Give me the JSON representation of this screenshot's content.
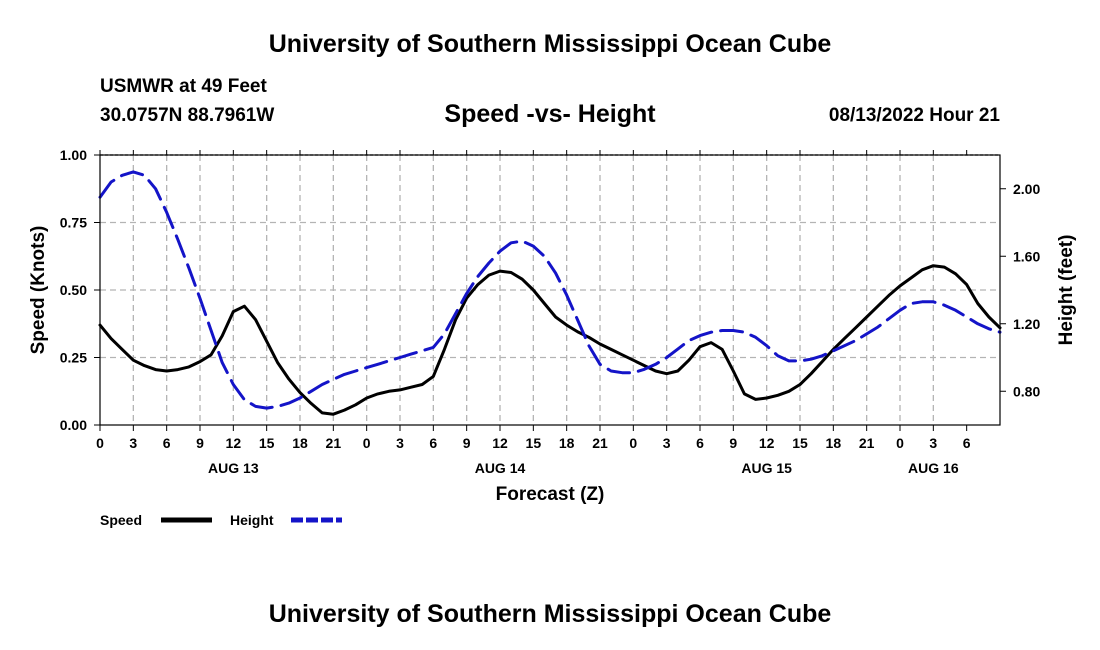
{
  "header": {
    "main_title": "University of Southern Mississippi Ocean Cube",
    "station": "USMWR at 49 Feet",
    "coordinates": "30.0757N  88.7961W",
    "run_time": "08/13/2022 Hour 21",
    "footer_title": "University of Southern Mississippi Ocean Cube"
  },
  "colors": {
    "speed": "#000000",
    "height": "#1414c8",
    "grid": "#b4b4b4"
  },
  "chart_data": {
    "type": "line",
    "title": "Speed -vs- Height",
    "xlabel": "Forecast (Z)",
    "ylabel": "Speed (Knots)",
    "y2label": "Height (feet)",
    "grid": true,
    "legend_position": "bottom-left",
    "xlim": [
      0,
      81
    ],
    "ylim": [
      0,
      1
    ],
    "y2lim": [
      0.6,
      2.2
    ],
    "x_tick_labels": [
      "0",
      "3",
      "6",
      "9",
      "12",
      "15",
      "18",
      "21",
      "0",
      "3",
      "6",
      "9",
      "12",
      "15",
      "18",
      "21",
      "0",
      "3",
      "6",
      "9",
      "12",
      "15",
      "18",
      "21",
      "0",
      "3",
      "6"
    ],
    "date_labels": [
      {
        "x": 12,
        "label": "AUG 13"
      },
      {
        "x": 36,
        "label": "AUG 14"
      },
      {
        "x": 60,
        "label": "AUG 15"
      },
      {
        "x": 75,
        "label": "AUG 16"
      }
    ],
    "y_ticks": [
      0,
      0.25,
      0.5,
      0.75,
      1.0
    ],
    "y_tick_labels": [
      "0.00",
      "0.25",
      "0.50",
      "0.75",
      "1.00"
    ],
    "y2_ticks": [
      0.8,
      1.2,
      1.6,
      2.0
    ],
    "y2_tick_labels": [
      "0.80",
      "1.20",
      "1.60",
      "2.00"
    ],
    "series": [
      {
        "name": "Speed",
        "axis": "left",
        "style": "solid",
        "x": [
          0,
          1,
          2,
          3,
          4,
          5,
          6,
          7,
          8,
          9,
          10,
          11,
          12,
          13,
          14,
          15,
          16,
          17,
          18,
          19,
          20,
          21,
          22,
          23,
          24,
          25,
          26,
          27,
          28,
          29,
          30,
          31,
          32,
          33,
          34,
          35,
          36,
          37,
          38,
          39,
          40,
          41,
          42,
          43,
          44,
          45,
          46,
          47,
          48,
          49,
          50,
          51,
          52,
          53,
          54,
          55,
          56,
          57,
          58,
          59,
          60,
          61,
          62,
          63,
          64,
          65,
          66,
          67,
          68,
          69,
          70,
          71,
          72,
          73,
          74,
          75,
          76,
          77,
          78,
          79,
          80,
          81
        ],
        "values": [
          0.37,
          0.32,
          0.28,
          0.24,
          0.22,
          0.205,
          0.2,
          0.205,
          0.215,
          0.235,
          0.26,
          0.33,
          0.42,
          0.44,
          0.39,
          0.31,
          0.23,
          0.17,
          0.12,
          0.08,
          0.045,
          0.04,
          0.055,
          0.075,
          0.1,
          0.115,
          0.125,
          0.13,
          0.14,
          0.15,
          0.18,
          0.28,
          0.39,
          0.47,
          0.52,
          0.555,
          0.57,
          0.565,
          0.54,
          0.5,
          0.45,
          0.4,
          0.37,
          0.345,
          0.325,
          0.3,
          0.28,
          0.26,
          0.24,
          0.22,
          0.2,
          0.19,
          0.2,
          0.24,
          0.29,
          0.305,
          0.28,
          0.2,
          0.115,
          0.095,
          0.1,
          0.11,
          0.125,
          0.15,
          0.19,
          0.235,
          0.28,
          0.32,
          0.36,
          0.4,
          0.44,
          0.48,
          0.515,
          0.545,
          0.575,
          0.59,
          0.585,
          0.56,
          0.52,
          0.45,
          0.4,
          0.36
        ]
      },
      {
        "name": "Height",
        "axis": "right",
        "style": "dashed",
        "x": [
          0,
          1,
          2,
          3,
          4,
          5,
          6,
          7,
          8,
          9,
          10,
          11,
          12,
          13,
          14,
          15,
          16,
          17,
          18,
          19,
          20,
          21,
          22,
          23,
          24,
          25,
          26,
          27,
          28,
          29,
          30,
          31,
          32,
          33,
          34,
          35,
          36,
          37,
          38,
          39,
          40,
          41,
          42,
          43,
          44,
          45,
          46,
          47,
          48,
          49,
          50,
          51,
          52,
          53,
          54,
          55,
          56,
          57,
          58,
          59,
          60,
          61,
          62,
          63,
          64,
          65,
          66,
          67,
          68,
          69,
          70,
          71,
          72,
          73,
          74,
          75,
          76,
          77,
          78,
          79,
          80,
          81
        ],
        "values": [
          1.95,
          2.04,
          2.08,
          2.1,
          2.08,
          2.0,
          1.86,
          1.7,
          1.53,
          1.35,
          1.16,
          0.97,
          0.84,
          0.75,
          0.71,
          0.7,
          0.71,
          0.73,
          0.76,
          0.8,
          0.84,
          0.87,
          0.9,
          0.92,
          0.94,
          0.96,
          0.98,
          1.0,
          1.02,
          1.04,
          1.06,
          1.14,
          1.26,
          1.38,
          1.48,
          1.56,
          1.63,
          1.68,
          1.69,
          1.66,
          1.6,
          1.5,
          1.37,
          1.22,
          1.07,
          0.96,
          0.92,
          0.91,
          0.91,
          0.93,
          0.96,
          1.0,
          1.05,
          1.1,
          1.13,
          1.15,
          1.16,
          1.16,
          1.15,
          1.12,
          1.07,
          1.01,
          0.98,
          0.98,
          0.99,
          1.01,
          1.04,
          1.07,
          1.1,
          1.14,
          1.18,
          1.23,
          1.28,
          1.32,
          1.33,
          1.33,
          1.31,
          1.28,
          1.24,
          1.2,
          1.17,
          1.15
        ]
      }
    ]
  }
}
